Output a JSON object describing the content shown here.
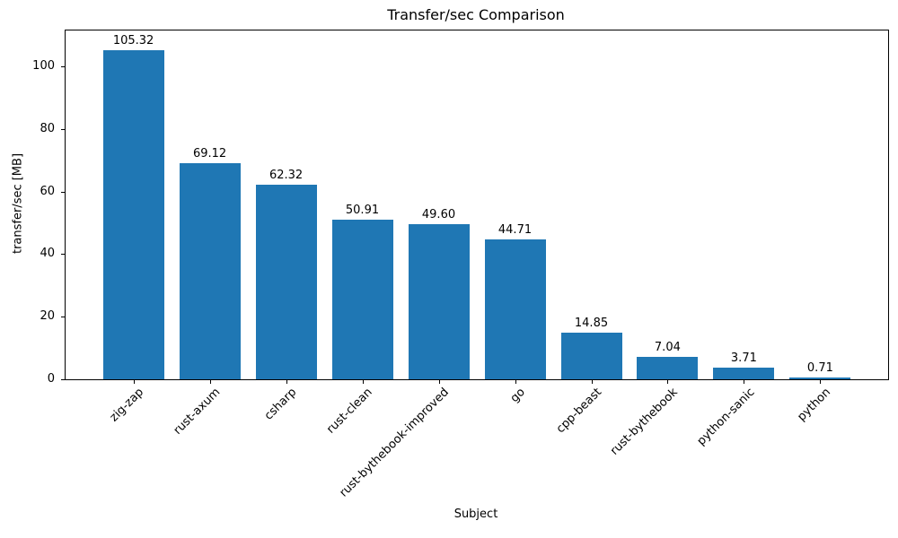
{
  "chart_data": {
    "type": "bar",
    "title": "Transfer/sec Comparison",
    "xlabel": "Subject",
    "ylabel": "transfer/sec [MB]",
    "categories": [
      "zig-zap",
      "rust-axum",
      "csharp",
      "rust-clean",
      "rust-bythebook-improved",
      "go",
      "cpp-beast",
      "rust-bythebook",
      "python-sanic",
      "python"
    ],
    "values": [
      105.32,
      69.12,
      62.32,
      50.91,
      49.6,
      44.71,
      14.85,
      7.04,
      3.71,
      0.71
    ],
    "value_labels": [
      "105.32",
      "69.12",
      "62.32",
      "50.91",
      "49.60",
      "44.71",
      "14.85",
      "7.04",
      "3.71",
      "0.71"
    ],
    "yticks": [
      0,
      20,
      40,
      60,
      80,
      100
    ],
    "ytick_labels": [
      "0",
      "20",
      "40",
      "60",
      "80",
      "100"
    ],
    "ylim": [
      0,
      111.5
    ],
    "bar_color": "#1f77b4",
    "axis_color": "#000000",
    "grid": false,
    "legend": null,
    "x_tick_rotation_deg": 45
  }
}
